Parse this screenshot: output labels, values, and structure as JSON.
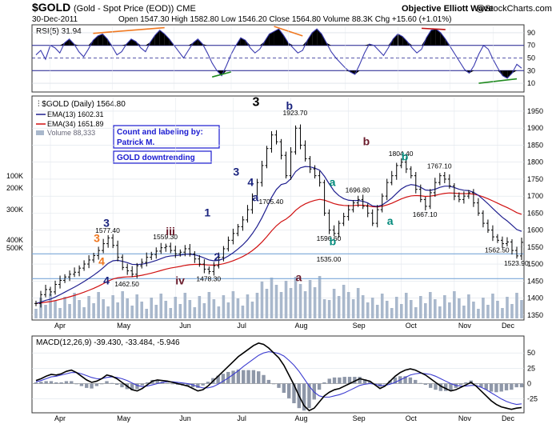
{
  "header": {
    "symbol": "$GOLD",
    "description": "(Gold - Spot Price (EOD)) CME",
    "brand": "Objective Elliott Wave",
    "copyright": "@StockCharts.com",
    "date": "30-Dec-2011",
    "ohlc_text": "Open 1547.30  High 1582.80  Low 1546.20  Close 1564.80  Volume 88.3K  Chg +15.60 (+1.01%)"
  },
  "annotation_boxes": {
    "credit_line1": "Count and labeling by:",
    "credit_line2": "Patrick M.",
    "trend": "GOLD downtrending"
  },
  "chart_data": [
    {
      "type": "line",
      "title": "RSI(5) 31.94",
      "ylim": [
        0,
        100
      ],
      "yticks": [
        10,
        30,
        50,
        70,
        90
      ],
      "overbought": 70,
      "oversold": 30,
      "values": [
        55,
        62,
        48,
        70,
        66,
        58,
        74,
        80,
        72,
        60,
        52,
        64,
        78,
        85,
        88,
        80,
        68,
        55,
        60,
        72,
        80,
        76,
        66,
        60,
        75,
        86,
        94,
        88,
        80,
        70,
        60,
        50,
        62,
        74,
        80,
        72,
        58,
        42,
        30,
        22,
        38,
        56,
        70,
        82,
        78,
        66,
        58,
        64,
        76,
        88,
        92,
        96,
        86,
        74,
        66,
        58,
        62,
        78,
        90,
        96,
        88,
        74,
        60,
        50,
        42,
        34,
        28,
        24,
        40,
        58,
        72,
        70,
        62,
        54,
        66,
        80,
        88,
        84,
        76,
        66,
        58,
        64,
        82,
        94,
        96,
        90,
        80,
        68,
        56,
        44,
        32,
        26,
        38,
        56,
        70,
        64,
        48,
        34,
        22,
        18,
        26,
        40,
        34
      ]
    },
    {
      "type": "line",
      "title": "$GOLD (Daily) 1564.80",
      "series": [
        {
          "name": "$GOLD (Daily)",
          "last": "1564.80"
        },
        {
          "name": "EMA(13)",
          "last": "1602.31"
        },
        {
          "name": "EMA(34)",
          "last": "1651.89"
        },
        {
          "name": "Volume",
          "last": "88,333"
        }
      ],
      "ylim": [
        1340,
        1990
      ],
      "yticks": [
        1350,
        1400,
        1450,
        1500,
        1550,
        1600,
        1650,
        1700,
        1750,
        1800,
        1850,
        1900,
        1950
      ],
      "volume_ticks": [
        "500K",
        "400K",
        "300K",
        "200K",
        "100K"
      ],
      "x_labels": [
        "Apr",
        "May",
        "Jun",
        "Jul",
        "Aug",
        "Sep",
        "Oct",
        "Nov",
        "Dec"
      ],
      "close": [
        1384,
        1410,
        1425,
        1418,
        1440,
        1452,
        1462,
        1470,
        1476,
        1488,
        1500,
        1512,
        1525,
        1540,
        1560,
        1577,
        1555,
        1520,
        1490,
        1480,
        1470,
        1495,
        1505,
        1520,
        1528,
        1538,
        1548,
        1552,
        1540,
        1530,
        1535,
        1545,
        1530,
        1515,
        1500,
        1485,
        1478,
        1495,
        1520,
        1545,
        1570,
        1590,
        1610,
        1630,
        1660,
        1700,
        1740,
        1790,
        1840,
        1880,
        1860,
        1820,
        1760,
        1830,
        1900,
        1850,
        1810,
        1780,
        1760,
        1740,
        1650,
        1600,
        1590,
        1620,
        1640,
        1660,
        1680,
        1690,
        1670,
        1650,
        1620,
        1660,
        1700,
        1740,
        1760,
        1790,
        1800,
        1780,
        1760,
        1720,
        1690,
        1670,
        1710,
        1740,
        1760,
        1750,
        1730,
        1700,
        1690,
        1700,
        1710,
        1680,
        1650,
        1620,
        1600,
        1580,
        1570,
        1560,
        1565,
        1540,
        1524,
        1564
      ],
      "labels": [
        {
          "text": "1577.40",
          "price": 1577.4
        },
        {
          "text": "1462.50",
          "price": 1462.5
        },
        {
          "text": "1559.30",
          "price": 1559.3
        },
        {
          "text": "1478.30",
          "price": 1478.3
        },
        {
          "text": "1923.70",
          "price": 1923.7
        },
        {
          "text": "1705.40",
          "price": 1705.4
        },
        {
          "text": "1596.60",
          "price": 1596.6
        },
        {
          "text": "1535.00",
          "price": 1535.0
        },
        {
          "text": "1696.80",
          "price": 1696.8
        },
        {
          "text": "1804.40",
          "price": 1804.4
        },
        {
          "text": "1767.10",
          "price": 1767.1
        },
        {
          "text": "1667.10",
          "price": 1667.1
        },
        {
          "text": "1562.50",
          "price": 1562.5
        },
        {
          "text": "1523.90",
          "price": 1523.9
        }
      ],
      "wave_labels": [
        {
          "text": "3",
          "color": "#1a237e"
        },
        {
          "text": "3",
          "color": "#f07820"
        },
        {
          "text": "4",
          "color": "#f07820"
        },
        {
          "text": "4",
          "color": "#1a237e"
        },
        {
          "text": "iii",
          "color": "#6a1a2a"
        },
        {
          "text": "iv",
          "color": "#6a1a2a"
        },
        {
          "text": "1",
          "color": "#1a237e"
        },
        {
          "text": "2",
          "color": "#1a237e"
        },
        {
          "text": "3",
          "color": "#1a237e"
        },
        {
          "text": "3",
          "color": "#000000"
        },
        {
          "text": "4",
          "color": "#1a237e"
        },
        {
          "text": "a",
          "color": "#1a237e"
        },
        {
          "text": "b",
          "color": "#1a237e"
        },
        {
          "text": "a",
          "color": "#6a1a2a"
        },
        {
          "text": "a",
          "color": "#00897b"
        },
        {
          "text": "b",
          "color": "#00897b"
        },
        {
          "text": "b",
          "color": "#6a1a2a"
        },
        {
          "text": "b",
          "color": "#00897b"
        },
        {
          "text": "a",
          "color": "#00897b"
        }
      ]
    },
    {
      "type": "line",
      "title": "MACD(12,26,9)",
      "values_text": [
        "-39.430",
        "-33.484",
        "-5.946"
      ],
      "ylim": [
        -45,
        75
      ],
      "yticks": [
        -25,
        0,
        25,
        50
      ],
      "macd": [
        5,
        8,
        12,
        15,
        14,
        16,
        20,
        22,
        18,
        12,
        6,
        2,
        4,
        8,
        14,
        12,
        8,
        2,
        -4,
        -10,
        -12,
        -8,
        -2,
        4,
        6,
        5,
        4,
        2,
        0,
        -2,
        -4,
        -8,
        -12,
        -10,
        -4,
        4,
        12,
        20,
        28,
        36,
        44,
        50,
        56,
        62,
        66,
        64,
        58,
        50,
        42,
        30,
        14,
        -2,
        -20,
        -36,
        -44,
        -40,
        -30,
        -20,
        -14,
        -10,
        -8,
        -4,
        0,
        4,
        8,
        6,
        4,
        -2,
        -8,
        -4,
        4,
        12,
        18,
        22,
        24,
        22,
        18,
        14,
        8,
        2,
        -4,
        -8,
        -12,
        -10,
        -6,
        -2,
        2,
        -4,
        -12,
        -20,
        -28,
        -34,
        -38,
        -40,
        -42,
        -40,
        -39
      ],
      "signal": [
        3,
        5,
        8,
        11,
        12,
        14,
        16,
        18,
        18,
        16,
        13,
        10,
        8,
        8,
        10,
        11,
        10,
        8,
        5,
        1,
        -3,
        -5,
        -4,
        -2,
        0,
        2,
        3,
        3,
        2,
        1,
        0,
        -2,
        -5,
        -7,
        -7,
        -5,
        -1,
        4,
        9,
        15,
        21,
        28,
        34,
        40,
        46,
        50,
        52,
        51,
        49,
        45,
        38,
        30,
        20,
        8,
        -4,
        -14,
        -20,
        -22,
        -22,
        -20,
        -18,
        -15,
        -11,
        -7,
        -3,
        -1,
        0,
        -1,
        -3,
        -3,
        -1,
        2,
        6,
        10,
        14,
        16,
        17,
        16,
        15,
        12,
        8,
        4,
        0,
        -3,
        -4,
        -4,
        -3,
        -3,
        -6,
        -10,
        -15,
        -20,
        -25,
        -29,
        -32,
        -34,
        -33
      ]
    }
  ]
}
